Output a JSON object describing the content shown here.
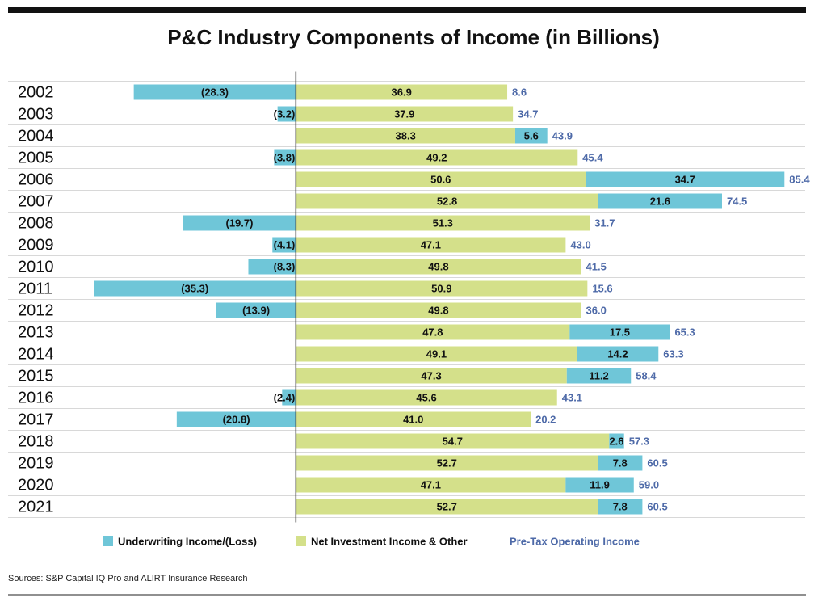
{
  "chart_data": {
    "type": "bar",
    "orientation": "horizontal",
    "stacked": true,
    "title": "P&C Industry Components of Income (in Billions)",
    "categories": [
      "2002",
      "2003",
      "2004",
      "2005",
      "2006",
      "2007",
      "2008",
      "2009",
      "2010",
      "2011",
      "2012",
      "2013",
      "2014",
      "2015",
      "2016",
      "2017",
      "2018",
      "2019",
      "2020",
      "2021"
    ],
    "series": [
      {
        "name": "Underwriting Income/(Loss)",
        "color": "#6fc6d8",
        "values": [
          -28.3,
          -3.2,
          5.6,
          -3.8,
          34.7,
          21.6,
          -19.7,
          -4.1,
          -8.3,
          -35.3,
          -13.9,
          17.5,
          14.2,
          11.2,
          -2.4,
          -20.8,
          2.6,
          7.8,
          11.9,
          7.8
        ],
        "value_labels": [
          "(28.3)",
          "(3.2)",
          "5.6",
          "(3.8)",
          "34.7",
          "21.6",
          "(19.7)",
          "(4.1)",
          "(8.3)",
          "(35.3)",
          "(13.9)",
          "17.5",
          "14.2",
          "11.2",
          "(2.4)",
          "(20.8)",
          "2.6",
          "7.8",
          "11.9",
          "7.8"
        ]
      },
      {
        "name": "Net Investment Income & Other",
        "color": "#d4e08a",
        "values": [
          36.9,
          37.9,
          38.3,
          49.2,
          50.6,
          52.8,
          51.3,
          47.1,
          49.8,
          50.9,
          49.8,
          47.8,
          49.1,
          47.3,
          45.6,
          41.0,
          54.7,
          52.7,
          47.1,
          52.7
        ],
        "value_labels": [
          "36.9",
          "37.9",
          "38.3",
          "49.2",
          "50.6",
          "52.8",
          "51.3",
          "47.1",
          "49.8",
          "50.9",
          "49.8",
          "47.8",
          "49.1",
          "47.3",
          "45.6",
          "41.0",
          "54.7",
          "52.7",
          "47.1",
          "52.7"
        ]
      },
      {
        "name": "Pre-Tax Operating Income",
        "color": "#4e6aa8",
        "values": [
          8.6,
          34.7,
          43.9,
          45.4,
          85.4,
          74.5,
          31.7,
          43.0,
          41.5,
          15.6,
          36.0,
          65.3,
          63.3,
          58.4,
          43.1,
          20.2,
          57.3,
          60.5,
          59.0,
          60.5
        ],
        "value_labels": [
          "8.6",
          "34.7",
          "43.9",
          "45.4",
          "85.4",
          "74.5",
          "31.7",
          "43.0",
          "41.5",
          "15.6",
          "36.0",
          "65.3",
          "63.3",
          "58.4",
          "43.1",
          "20.2",
          "57.3",
          "60.5",
          "59.0",
          "60.5"
        ]
      }
    ],
    "source": "Sources: S&P Capital IQ Pro and ALIRT Insurance Research"
  }
}
